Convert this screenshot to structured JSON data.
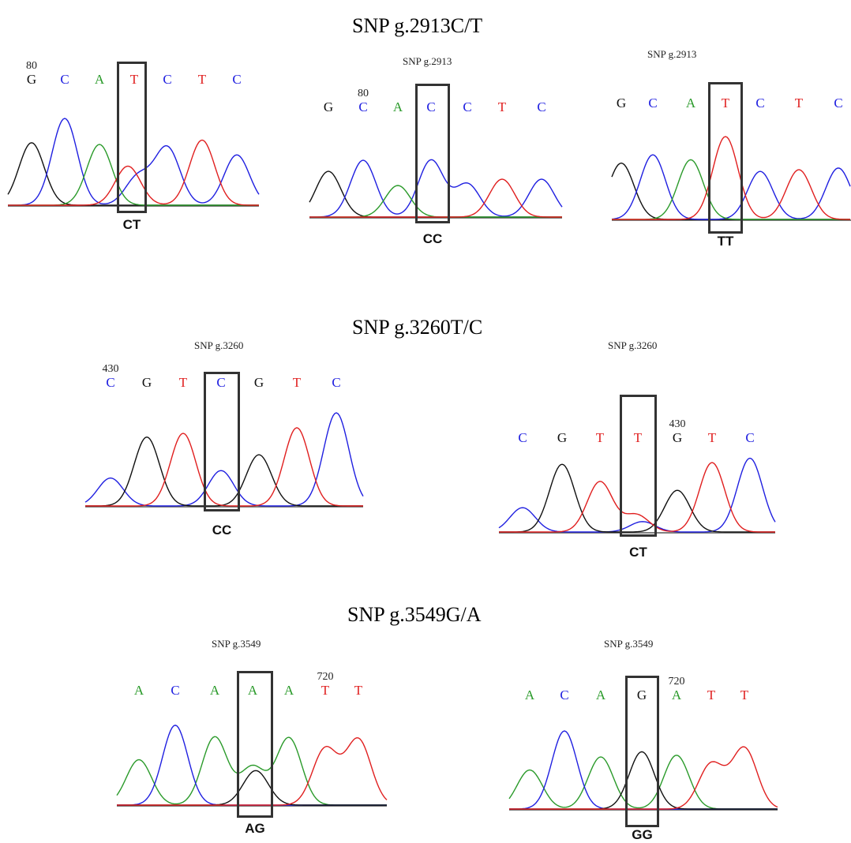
{
  "figure": {
    "section_titles": [
      "SNP g.2913C/T",
      "SNP g.3260T/C",
      "SNP g.3549G/A"
    ],
    "panels": [
      {
        "id": "p1",
        "title": "",
        "position_label": "80",
        "position_label_index": 0,
        "snp_index": 3,
        "bases": [
          "G",
          "C",
          "A",
          "T",
          "C",
          "T",
          "C"
        ],
        "genotype": "CT",
        "peaks": [
          {
            "base": "G",
            "h": 0.72
          },
          {
            "base": "C",
            "h": 1.0
          },
          {
            "base": "A",
            "h": 0.7
          },
          {
            "base": "T",
            "h": 0.45
          },
          {
            "base": "C",
            "h": 0.33
          },
          {
            "base": "C",
            "h": 0.66
          },
          {
            "base": "T",
            "h": 0.75
          },
          {
            "base": "C",
            "h": 0.58
          }
        ]
      },
      {
        "id": "p2",
        "title": "SNP g.2913",
        "position_label": "80",
        "position_label_index": 1,
        "snp_index": 3,
        "bases": [
          "G",
          "C",
          "A",
          "C",
          "C",
          "T",
          "C"
        ],
        "genotype": "CC",
        "peaks": [
          {
            "base": "G",
            "h": 0.58
          },
          {
            "base": "C",
            "h": 0.72
          },
          {
            "base": "A",
            "h": 0.4
          },
          {
            "base": "C",
            "h": 0.72
          },
          {
            "base": "C",
            "h": 0.42
          },
          {
            "base": "T",
            "h": 0.48
          },
          {
            "base": "C",
            "h": 0.48
          }
        ]
      },
      {
        "id": "p3",
        "title": "SNP g.2913",
        "position_label": "",
        "position_label_index": -1,
        "snp_index": 3,
        "bases": [
          "G",
          "C",
          "A",
          "T",
          "C",
          "T",
          "C"
        ],
        "genotype": "TT",
        "peaks": [
          {
            "base": "G",
            "h": 0.68
          },
          {
            "base": "C",
            "h": 0.78
          },
          {
            "base": "A",
            "h": 0.72
          },
          {
            "base": "T",
            "h": 1.0
          },
          {
            "base": "C",
            "h": 0.58
          },
          {
            "base": "T",
            "h": 0.6
          },
          {
            "base": "C",
            "h": 0.62
          }
        ]
      },
      {
        "id": "p4",
        "title": "SNP g.3260",
        "position_label": "430",
        "position_label_index": 0,
        "snp_index": 3,
        "bases": [
          "C",
          "G",
          "T",
          "C",
          "G",
          "T",
          "C"
        ],
        "genotype": "CC",
        "peaks": [
          {
            "base": "C",
            "h": 0.3
          },
          {
            "base": "G",
            "h": 0.74
          },
          {
            "base": "T",
            "h": 0.78
          },
          {
            "base": "C",
            "h": 0.38
          },
          {
            "base": "G",
            "h": 0.55
          },
          {
            "base": "T",
            "h": 0.84
          },
          {
            "base": "C",
            "h": 1.0
          }
        ]
      },
      {
        "id": "p5",
        "title": "SNP g.3260",
        "position_label": "430",
        "position_label_index": 4,
        "snp_index": 3,
        "bases": [
          "C",
          "G",
          "T",
          "T",
          "G",
          "T",
          "C"
        ],
        "genotype": "CT",
        "peaks": [
          {
            "base": "C",
            "h": 0.28
          },
          {
            "base": "G",
            "h": 0.78
          },
          {
            "base": "T",
            "h": 0.58
          },
          {
            "base": "T",
            "h": 0.2
          },
          {
            "base": "C",
            "h": 0.12
          },
          {
            "base": "G",
            "h": 0.48
          },
          {
            "base": "T",
            "h": 0.8
          },
          {
            "base": "C",
            "h": 0.85
          }
        ]
      },
      {
        "id": "p6",
        "title": "SNP g.3549",
        "position_label": "720",
        "position_label_index": 5,
        "snp_index": 3,
        "bases": [
          "A",
          "C",
          "A",
          "A",
          "A",
          "T",
          "T"
        ],
        "genotype": "AG",
        "peaks": [
          {
            "base": "A",
            "h": 0.5
          },
          {
            "base": "C",
            "h": 0.88
          },
          {
            "base": "A",
            "h": 0.75
          },
          {
            "base": "A",
            "h": 0.42
          },
          {
            "base": "G",
            "h": 0.38
          },
          {
            "base": "A",
            "h": 0.74
          },
          {
            "base": "T",
            "h": 0.62
          },
          {
            "base": "T",
            "h": 0.72
          }
        ]
      },
      {
        "id": "p7",
        "title": "SNP g.3549",
        "position_label": "720",
        "position_label_index": 4,
        "snp_index": 3,
        "bases": [
          "A",
          "C",
          "A",
          "G",
          "A",
          "T",
          "T"
        ],
        "genotype": "GG",
        "peaks": [
          {
            "base": "A",
            "h": 0.45
          },
          {
            "base": "C",
            "h": 0.9
          },
          {
            "base": "A",
            "h": 0.6
          },
          {
            "base": "G",
            "h": 0.66
          },
          {
            "base": "A",
            "h": 0.62
          },
          {
            "base": "T",
            "h": 0.52
          },
          {
            "base": "T",
            "h": 0.7
          }
        ]
      }
    ],
    "base_colors": {
      "A": "#2a9a2a",
      "C": "#1f1fe0",
      "G": "#111111",
      "T": "#e01f1f"
    }
  }
}
